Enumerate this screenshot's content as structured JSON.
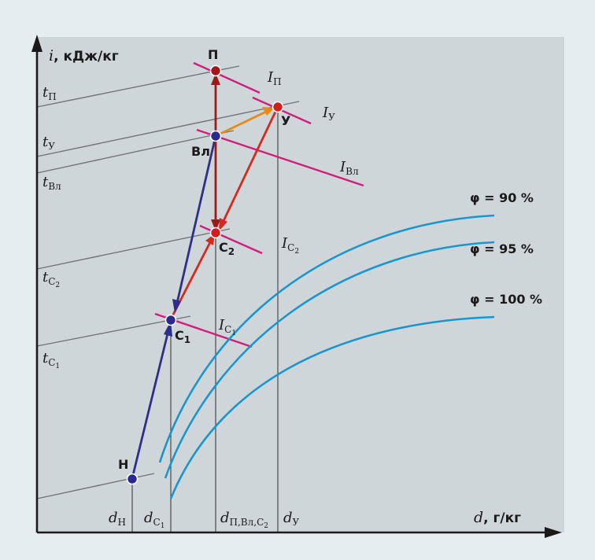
{
  "colors": {
    "outer_bg": "#e6edf1",
    "plot_bg": "#cfd6da",
    "axis": "#1a1a1a",
    "isotherm": "#6e7478",
    "guide": "#4a4a4a",
    "enthalpy": "#d01f7a",
    "saturation": "#1a96cf",
    "arrow_red": "#d42a20",
    "arrow_darkred": "#9c1a1a",
    "arrow_blue": "#2f2f8a",
    "arrow_orange": "#e98a12",
    "point_red": "#d01f1f",
    "point_darkred": "#a01818",
    "point_blue": "#2a2a8c"
  },
  "axes": {
    "y_var": "i",
    "y_unit": ", кДж/кг",
    "x_var": "d",
    "x_unit": ", г/кг"
  },
  "points": {
    "P": "П",
    "U": "У",
    "VL": "Вл",
    "C2": "С",
    "C2_sub": "2",
    "C1": "С",
    "C1_sub": "1",
    "N": "Н"
  },
  "isotherms": {
    "tP": {
      "var": "t",
      "sub": "П"
    },
    "tU": {
      "var": "t",
      "sub": "У"
    },
    "tVL": {
      "var": "t",
      "sub": "Вл"
    },
    "tC2": {
      "var": "t",
      "sub": "C",
      "subsub": "2"
    },
    "tC1": {
      "var": "t",
      "sub": "C",
      "subsub": "1"
    }
  },
  "enthalpy_labels": {
    "IP": {
      "var": "I",
      "sub": "П"
    },
    "IU": {
      "var": "I",
      "sub": "У"
    },
    "IVL": {
      "var": "I",
      "sub": "Вл"
    },
    "IC2": {
      "var": "I",
      "sub": "C",
      "subsub": "2"
    },
    "IC1": {
      "var": "I",
      "sub": "C",
      "subsub": "1"
    }
  },
  "d_labels": {
    "dN": {
      "var": "d",
      "sub": "Н"
    },
    "dC1": {
      "var": "d",
      "sub": "C",
      "subsub": "1"
    },
    "dP": {
      "var": "d",
      "sub": "П,Вл,C",
      "subsub": "2"
    },
    "dU": {
      "var": "d",
      "sub": "У"
    }
  },
  "phi_curves": {
    "c90": "φ = 90 %",
    "c95": "φ = 95 %",
    "c100": "φ = 100 %"
  }
}
